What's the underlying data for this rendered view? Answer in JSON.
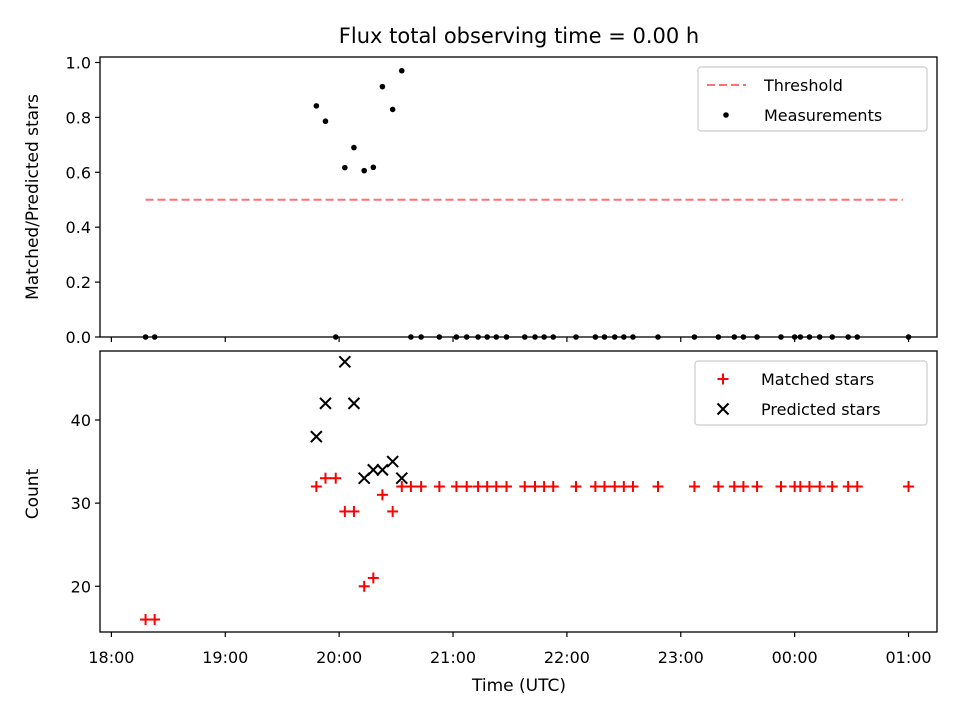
{
  "chart_data": {
    "title": "Flux total observing time = 0.00 h",
    "xlabel": "Time (UTC)",
    "x_ticks": [
      {
        "hour": 0,
        "label": "18:00"
      },
      {
        "hour": 1,
        "label": "19:00"
      },
      {
        "hour": 2,
        "label": "20:00"
      },
      {
        "hour": 3,
        "label": "21:00"
      },
      {
        "hour": 4,
        "label": "22:00"
      },
      {
        "hour": 5,
        "label": "23:00"
      },
      {
        "hour": 6,
        "label": "00:00"
      },
      {
        "hour": 7,
        "label": "01:00"
      }
    ],
    "xlim_hours_after_1800": [
      -0.1,
      7.25
    ],
    "panels": [
      {
        "type": "scatter",
        "ylabel": "Matched/Predicted stars",
        "ylim": [
          0,
          1.02
        ],
        "y_ticks": [
          0,
          0.2,
          0.4,
          0.6,
          0.8,
          1.0
        ],
        "y_tick_labels": [
          "0.0",
          "0.2",
          "0.4",
          "0.6",
          "0.8",
          "1.0"
        ],
        "legend": {
          "placement": "top-right",
          "entries": [
            "Threshold",
            "Measurements"
          ]
        },
        "threshold": {
          "name": "Threshold",
          "value": 0.5,
          "x_range": [
            0.3,
            6.95
          ],
          "color": "#ff7070",
          "style": "dashed"
        },
        "series": [
          {
            "name": "Measurements",
            "marker": "dot",
            "color": "#000000",
            "x": [
              0.3,
              0.38,
              1.8,
              1.88,
              1.97,
              2.05,
              2.13,
              2.22,
              2.3,
              2.38,
              2.47,
              2.55,
              2.63,
              2.72,
              2.88,
              3.03,
              3.12,
              3.22,
              3.3,
              3.38,
              3.47,
              3.63,
              3.72,
              3.8,
              3.88,
              4.08,
              4.25,
              4.33,
              4.42,
              4.5,
              4.58,
              4.8,
              5.12,
              5.33,
              5.47,
              5.55,
              5.67,
              5.88,
              6.0,
              6.05,
              6.13,
              6.22,
              6.33,
              6.47,
              6.55,
              7.0
            ],
            "y": [
              0,
              0,
              0.842,
              0.786,
              0.0,
              0.617,
              0.69,
              0.606,
              0.618,
              0.912,
              0.829,
              0.97,
              0,
              0,
              0,
              0,
              0,
              0,
              0,
              0,
              0,
              0,
              0,
              0,
              0,
              0,
              0,
              0,
              0,
              0,
              0,
              0,
              0,
              0,
              0,
              0,
              0,
              0,
              0,
              0,
              0,
              0,
              0,
              0,
              0,
              0
            ]
          }
        ]
      },
      {
        "type": "scatter",
        "ylabel": "Count",
        "ylim": [
          14.5,
          48.3
        ],
        "y_ticks": [
          20,
          30,
          40
        ],
        "y_tick_labels": [
          "20",
          "30",
          "40"
        ],
        "legend": {
          "placement": "top-right",
          "entries": [
            "Matched stars",
            "Predicted stars"
          ]
        },
        "series": [
          {
            "name": "Matched stars",
            "marker": "plus",
            "color": "#ff0000",
            "x": [
              0.3,
              0.38,
              1.8,
              1.88,
              1.97,
              2.05,
              2.13,
              2.22,
              2.3,
              2.38,
              2.47,
              2.55,
              2.63,
              2.72,
              2.88,
              3.03,
              3.12,
              3.22,
              3.3,
              3.38,
              3.47,
              3.63,
              3.72,
              3.8,
              3.88,
              4.08,
              4.25,
              4.33,
              4.42,
              4.5,
              4.58,
              4.8,
              5.12,
              5.33,
              5.47,
              5.55,
              5.67,
              5.88,
              6.0,
              6.05,
              6.13,
              6.22,
              6.33,
              6.47,
              6.55,
              7.0
            ],
            "y": [
              16,
              16,
              32,
              33,
              33,
              29,
              29,
              20,
              21,
              31,
              29,
              32,
              32,
              32,
              32,
              32,
              32,
              32,
              32,
              32,
              32,
              32,
              32,
              32,
              32,
              32,
              32,
              32,
              32,
              32,
              32,
              32,
              32,
              32,
              32,
              32,
              32,
              32,
              32,
              32,
              32,
              32,
              32,
              32,
              32,
              32
            ]
          },
          {
            "name": "Predicted stars",
            "marker": "x",
            "color": "#000000",
            "x": [
              1.8,
              1.88,
              2.05,
              2.13,
              2.22,
              2.3,
              2.38,
              2.47,
              2.55
            ],
            "y": [
              38,
              42,
              47,
              42,
              33,
              34,
              34,
              35,
              33
            ]
          }
        ]
      }
    ]
  }
}
